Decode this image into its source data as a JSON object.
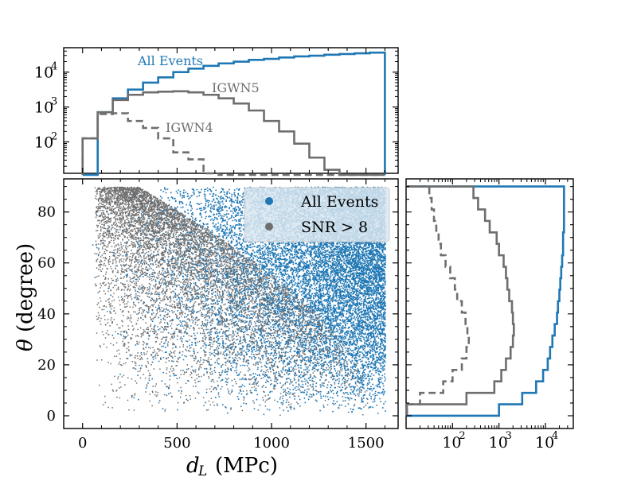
{
  "colors": {
    "all": "#1f77b4",
    "snr": "#6e6e6e"
  },
  "chart_data": [
    {
      "id": "top-histogram",
      "type": "histogram",
      "xlim": [
        -100,
        1670
      ],
      "ylim_log10": [
        1.1,
        4.7
      ],
      "y_ticks": [
        {
          "value": 2,
          "label": "10"
        },
        {
          "value": 3,
          "label": "10"
        },
        {
          "value": 4,
          "label": "10"
        }
      ],
      "y_tick_exponents": [
        "2",
        "3",
        "4"
      ],
      "bin_edges": [
        0,
        80,
        160,
        240,
        320,
        400,
        480,
        560,
        640,
        720,
        800,
        880,
        960,
        1040,
        1120,
        1200,
        1280,
        1360,
        1440,
        1520,
        1600
      ],
      "series": [
        {
          "name": "All Events",
          "style": "solid",
          "color_key": "all",
          "log10_counts": [
            0.5,
            2.85,
            3.25,
            3.5,
            3.7,
            3.85,
            4.0,
            4.1,
            4.18,
            4.25,
            4.3,
            4.35,
            4.38,
            4.42,
            4.45,
            4.47,
            4.5,
            4.52,
            4.54,
            4.56
          ]
        },
        {
          "name": "IGWN5",
          "style": "solid",
          "color_key": "snr",
          "log10_counts": [
            2.1,
            2.85,
            3.2,
            3.35,
            3.42,
            3.44,
            3.45,
            3.42,
            3.35,
            3.25,
            3.1,
            2.9,
            2.6,
            2.3,
            1.95,
            1.55,
            1.2,
            0.9,
            0.5,
            0.3
          ]
        },
        {
          "name": "IGWN4",
          "style": "dashed",
          "color_key": "snr",
          "log10_counts": [
            2.1,
            2.8,
            2.82,
            2.6,
            2.4,
            2.1,
            1.7,
            1.5,
            1.1,
            0.4,
            0,
            0,
            0,
            0,
            0,
            0,
            0,
            0,
            0,
            0
          ]
        }
      ],
      "annotations": [
        "All Events",
        "IGWN5",
        "IGWN4"
      ]
    },
    {
      "id": "main-scatter",
      "type": "scatter",
      "xlabel_main": "d",
      "xlabel_sub": "L",
      "xlabel_unit": "(MPc)",
      "ylabel_symbol": "θ",
      "ylabel_unit": "(degree)",
      "xlim": [
        -100,
        1670
      ],
      "ylim": [
        -5,
        93
      ],
      "x_ticks": [
        0,
        500,
        1000,
        1500
      ],
      "y_ticks": [
        0,
        20,
        40,
        60,
        80
      ],
      "x_range_data": [
        0,
        1600
      ],
      "y_range_data": [
        0,
        90
      ],
      "series": [
        {
          "name": "All Events",
          "color_key": "all",
          "approx_points": 40000
        },
        {
          "name": "SNR > 8",
          "color_key": "snr",
          "approx_points": 14000
        }
      ],
      "legend": [
        "All Events",
        "SNR > 8"
      ],
      "legend_position": "top-right"
    },
    {
      "id": "right-histogram",
      "type": "histogram",
      "orientation": "horizontal",
      "xlim_log10": [
        1.0,
        4.6
      ],
      "x_ticks": [
        {
          "value": 2,
          "label": "10"
        },
        {
          "value": 3,
          "label": "10"
        },
        {
          "value": 4,
          "label": "10"
        }
      ],
      "x_tick_exponents": [
        "2",
        "3",
        "4"
      ],
      "bin_edges_deg": [
        0,
        4.5,
        9,
        13.5,
        18,
        22.5,
        27,
        31.5,
        36,
        40.5,
        45,
        49.5,
        54,
        58.5,
        63,
        67.5,
        72,
        76.5,
        81,
        85.5,
        90
      ],
      "series": [
        {
          "name": "All Events",
          "style": "solid",
          "color_key": "all",
          "log10_counts": [
            3.0,
            3.5,
            3.8,
            3.95,
            4.05,
            4.1,
            4.15,
            4.2,
            4.25,
            4.27,
            4.3,
            4.32,
            4.34,
            4.36,
            4.38,
            4.38,
            4.4,
            4.4,
            4.4,
            4.4
          ]
        },
        {
          "name": "IGWN5",
          "style": "solid",
          "color_key": "snr",
          "log10_counts": [
            1.0,
            2.3,
            2.9,
            3.05,
            3.15,
            3.25,
            3.3,
            3.32,
            3.3,
            3.28,
            3.22,
            3.18,
            3.15,
            3.1,
            3.0,
            2.95,
            2.8,
            2.7,
            2.55,
            2.45
          ]
        },
        {
          "name": "IGWN4",
          "style": "dashed",
          "color_key": "snr",
          "log10_counts": [
            1.0,
            1.3,
            1.8,
            2.0,
            2.2,
            2.3,
            2.35,
            2.32,
            2.28,
            2.2,
            2.1,
            2.05,
            1.95,
            1.85,
            1.75,
            1.7,
            1.65,
            1.6,
            1.55,
            1.5
          ]
        }
      ]
    }
  ]
}
